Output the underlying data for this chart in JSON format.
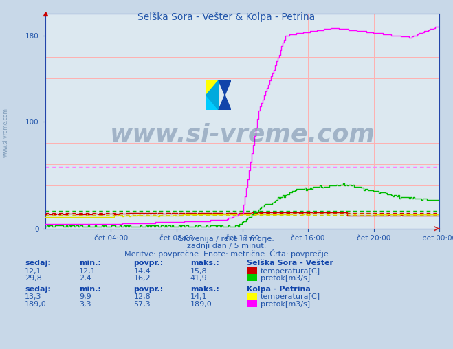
{
  "title": "Selška Sora - Vešter & Kolpa - Petrina",
  "bg_color": "#c8d8e8",
  "plot_bg_color": "#dce8f0",
  "grid_color": "#ffb0b0",
  "x_ticks_labels": [
    "čet 04:00",
    "čet 08:00",
    "čet 12:00",
    "čet 16:00",
    "čet 20:00",
    "pet 00:00"
  ],
  "y_ticks": [
    0,
    20,
    40,
    60,
    80,
    100,
    120,
    140,
    160,
    180
  ],
  "ylim": [
    0,
    200
  ],
  "subtitle1": "Slovenija / reke in morje.",
  "subtitle2": "zadnji dan / 5 minut.",
  "subtitle3": "Meritve: povprečne  Enote: metrične  Črta: povprečje",
  "watermark": "www.si-vreme.com",
  "watermark_color": "#1a3a6a",
  "watermark_alpha": 0.3,
  "side_watermark": "www.si-vreme.com",
  "series": {
    "selska_temp": {
      "color": "#cc0000",
      "avg_value": 14.4,
      "sedaj": "12,1",
      "min": "12,1",
      "povpr": "14,4",
      "maks": "15,8"
    },
    "selska_pretok": {
      "color": "#00bb00",
      "avg_value": 16.2,
      "sedaj": "29,8",
      "min": "2,4",
      "povpr": "16,2",
      "maks": "41,9"
    },
    "kolpa_temp": {
      "color": "#dddd00",
      "avg_value": 12.8,
      "sedaj": "13,3",
      "min": "9,9",
      "povpr": "12,8",
      "maks": "14,1"
    },
    "kolpa_pretok": {
      "color": "#ff00ff",
      "avg_value": 57.3,
      "sedaj": "189,0",
      "min": "3,3",
      "povpr": "57,3",
      "maks": "189,0"
    }
  },
  "n_points": 288,
  "text_color": "#2255aa",
  "bold_color": "#1144aa"
}
